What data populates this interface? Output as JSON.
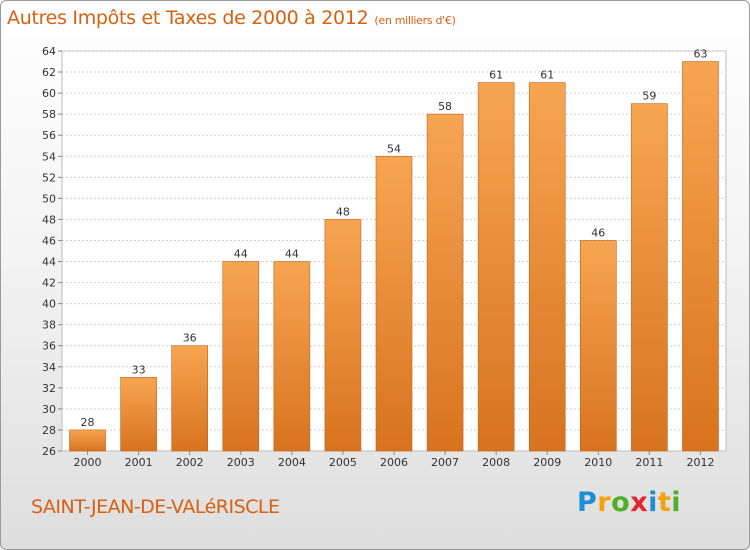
{
  "title": "Autres Impôts et Taxes de 2000 à 2012",
  "unit_note": "(en milliers d'€)",
  "town": "SAINT-JEAN-DE-VALéRISCLE",
  "logo": {
    "letters": [
      "P",
      "r",
      "o",
      "x",
      "i",
      "t",
      "i"
    ]
  },
  "colors": {
    "title": "#d9600f",
    "bar_top": "#f7a552",
    "bar_bottom": "#d8731f",
    "bar_edge": "#c0621a"
  },
  "chart_data": {
    "type": "bar",
    "categories": [
      "2000",
      "2001",
      "2002",
      "2003",
      "2004",
      "2005",
      "2006",
      "2007",
      "2008",
      "2009",
      "2010",
      "2011",
      "2012"
    ],
    "values": [
      28,
      33,
      36,
      44,
      44,
      48,
      54,
      58,
      61,
      61,
      46,
      59,
      63
    ],
    "ylim": [
      26,
      64
    ],
    "yticks": [
      26,
      28,
      30,
      32,
      34,
      36,
      38,
      40,
      42,
      44,
      46,
      48,
      50,
      52,
      54,
      56,
      58,
      60,
      62,
      64
    ],
    "grid": true,
    "title": "Autres Impôts et Taxes de 2000 à 2012",
    "xlabel": "",
    "ylabel": ""
  }
}
